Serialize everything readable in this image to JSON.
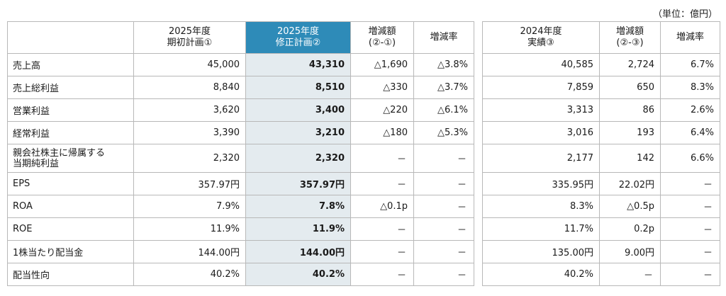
{
  "unit_label": "（単位：億円）",
  "main_table": {
    "headers": [
      "",
      "2025年度\n期初計画①",
      "2025年度\n修正計画②",
      "増減額\n(②-①)",
      "増減率"
    ],
    "rows": [
      [
        "売上高",
        "45,000",
        "43,310",
        "△1,690",
        "△3.8%"
      ],
      [
        "売上総利益",
        "8,840",
        "8,510",
        "△330",
        "△3.7%"
      ],
      [
        "営業利益",
        "3,620",
        "3,400",
        "△220",
        "△6.1%"
      ],
      [
        "経常利益",
        "3,390",
        "3,210",
        "△180",
        "△5.3%"
      ],
      [
        "親会社株主に帰属する\n当期純利益",
        "2,320",
        "2,320",
        "－",
        "－"
      ],
      [
        "EPS",
        "357.97円",
        "357.97円",
        "－",
        "－"
      ],
      [
        "ROA",
        "7.9%",
        "7.8%",
        "△0.1p",
        "－"
      ],
      [
        "ROE",
        "11.9%",
        "11.9%",
        "－",
        "－"
      ],
      [
        "1株当たり配当金",
        "144.00円",
        "144.00円",
        "－",
        "－"
      ],
      [
        "配当性向",
        "40.2%",
        "40.2%",
        "－",
        "－"
      ]
    ]
  },
  "prev_table": {
    "headers": [
      "2024年度\n実績③",
      "増減額\n(②-③)",
      "増減率"
    ],
    "rows": [
      [
        "40,585",
        "2,724",
        "6.7%"
      ],
      [
        "7,859",
        "650",
        "8.3%"
      ],
      [
        "3,313",
        "86",
        "2.6%"
      ],
      [
        "3,016",
        "193",
        "6.4%"
      ],
      [
        "2,177",
        "142",
        "6.6%"
      ],
      [
        "335.95円",
        "22.02円",
        "－"
      ],
      [
        "8.3%",
        "△0.5p",
        "－"
      ],
      [
        "11.7%",
        "0.2p",
        "－"
      ],
      [
        "135.00円",
        "9.00円",
        "－"
      ],
      [
        "40.2%",
        "－",
        "－"
      ]
    ]
  },
  "colors": {
    "highlight_header": "#2e8bb8",
    "highlight_column": "#e4ebef",
    "border": "#b8b8b8"
  }
}
